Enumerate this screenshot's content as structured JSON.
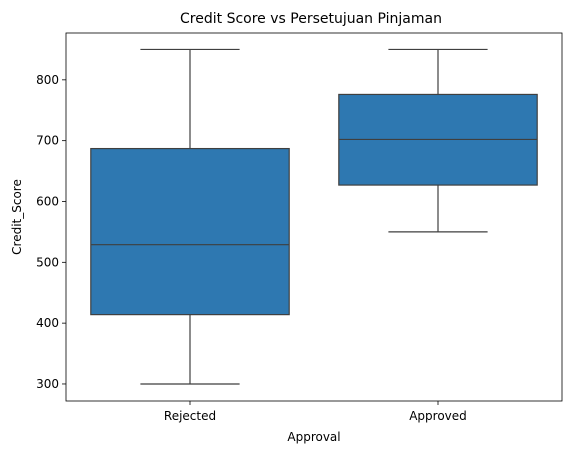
{
  "chart_data": {
    "type": "box",
    "title": "Credit Score vs Persetujuan Pinjaman",
    "xlabel": "Approval",
    "ylabel": "Credit_Score",
    "categories": [
      "Rejected",
      "Approved"
    ],
    "boxes": [
      {
        "category": "Rejected",
        "whisker_low": 300,
        "q1": 414,
        "median": 529,
        "q3": 687,
        "whisker_high": 850
      },
      {
        "category": "Approved",
        "whisker_low": 550,
        "q1": 627,
        "median": 702,
        "q3": 776,
        "whisker_high": 850
      }
    ],
    "ylim": [
      272,
      877
    ],
    "yticks": [
      300,
      400,
      500,
      600,
      700,
      800
    ],
    "grid": false,
    "color": "#2e78b1",
    "line_color": "#3f3f3f"
  }
}
